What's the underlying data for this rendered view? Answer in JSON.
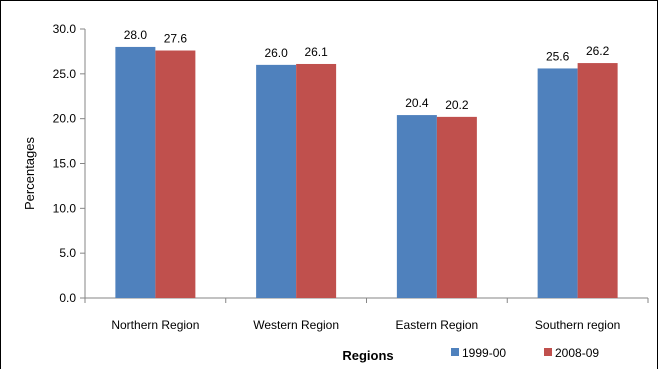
{
  "chart_data": {
    "type": "bar",
    "categories": [
      "Northern Region",
      "Western Region",
      "Eastern Region",
      "Southern region"
    ],
    "series": [
      {
        "name": "1999-00",
        "values": [
          28.0,
          26.0,
          20.4,
          25.6
        ],
        "color": "#4F81BD"
      },
      {
        "name": "2008-09",
        "values": [
          27.6,
          26.1,
          20.2,
          26.2
        ],
        "color": "#C0504D"
      }
    ],
    "data_labels": [
      [
        "28.0",
        "26.0",
        "20.4",
        "25.6"
      ],
      [
        "27.6",
        "26.1",
        "20.2",
        "26.2"
      ]
    ],
    "y_ticks": [
      "0.0",
      "5.0",
      "10.0",
      "15.0",
      "20.0",
      "25.0",
      "30.0"
    ],
    "ylim": [
      0,
      30
    ],
    "xlabel": "Regions",
    "ylabel": "Percentages",
    "legend_position": "bottom-right",
    "grid": false
  }
}
